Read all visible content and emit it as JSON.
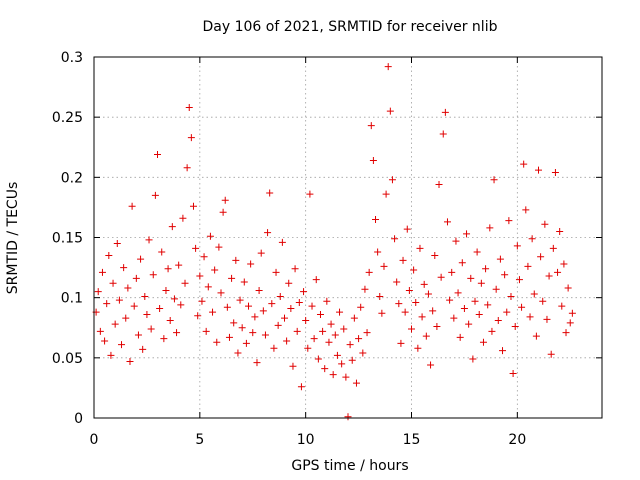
{
  "chart_data": {
    "type": "scatter",
    "title": "Day 106 of 2021, SRMTID for receiver nlib",
    "xlabel": "GPS time / hours",
    "ylabel": "SRMTID / TECUs",
    "xlim": [
      0,
      24
    ],
    "ylim": [
      0,
      0.3
    ],
    "x_ticks": [
      0,
      5,
      10,
      15,
      20
    ],
    "x_tick_labels": [
      "0",
      "5",
      "10",
      "15",
      "20"
    ],
    "y_ticks": [
      0,
      0.05,
      0.1,
      0.15,
      0.2,
      0.25,
      0.3
    ],
    "y_tick_labels": [
      "0",
      "0.05",
      "0.1",
      "0.15",
      "0.2",
      "0.25",
      "0.3"
    ],
    "grid": true,
    "marker": "plus",
    "color": "#e00000",
    "series": [
      {
        "name": "SRMTID",
        "points": [
          [
            0.1,
            0.088
          ],
          [
            0.2,
            0.105
          ],
          [
            0.3,
            0.072
          ],
          [
            0.4,
            0.121
          ],
          [
            0.5,
            0.064
          ],
          [
            0.6,
            0.095
          ],
          [
            0.7,
            0.135
          ],
          [
            0.8,
            0.052
          ],
          [
            0.9,
            0.112
          ],
          [
            1.0,
            0.078
          ],
          [
            1.1,
            0.145
          ],
          [
            1.2,
            0.098
          ],
          [
            1.3,
            0.061
          ],
          [
            1.4,
            0.125
          ],
          [
            1.5,
            0.083
          ],
          [
            1.6,
            0.108
          ],
          [
            1.7,
            0.047
          ],
          [
            1.8,
            0.176
          ],
          [
            1.9,
            0.093
          ],
          [
            2.0,
            0.116
          ],
          [
            2.1,
            0.069
          ],
          [
            2.2,
            0.132
          ],
          [
            2.3,
            0.057
          ],
          [
            2.4,
            0.101
          ],
          [
            2.5,
            0.086
          ],
          [
            2.6,
            0.148
          ],
          [
            2.7,
            0.074
          ],
          [
            2.8,
            0.119
          ],
          [
            2.9,
            0.185
          ],
          [
            3.0,
            0.219
          ],
          [
            3.1,
            0.091
          ],
          [
            3.2,
            0.138
          ],
          [
            3.3,
            0.066
          ],
          [
            3.4,
            0.106
          ],
          [
            3.5,
            0.124
          ],
          [
            3.6,
            0.081
          ],
          [
            3.7,
            0.159
          ],
          [
            3.8,
            0.099
          ],
          [
            3.9,
            0.071
          ],
          [
            4.0,
            0.127
          ],
          [
            4.1,
            0.094
          ],
          [
            4.2,
            0.166
          ],
          [
            4.3,
            0.112
          ],
          [
            4.4,
            0.208
          ],
          [
            4.5,
            0.258
          ],
          [
            4.6,
            0.233
          ],
          [
            4.7,
            0.176
          ],
          [
            4.8,
            0.141
          ],
          [
            4.9,
            0.085
          ],
          [
            5.0,
            0.118
          ],
          [
            5.1,
            0.097
          ],
          [
            5.2,
            0.134
          ],
          [
            5.3,
            0.072
          ],
          [
            5.4,
            0.109
          ],
          [
            5.5,
            0.151
          ],
          [
            5.6,
            0.088
          ],
          [
            5.7,
            0.123
          ],
          [
            5.8,
            0.063
          ],
          [
            5.9,
            0.142
          ],
          [
            6.0,
            0.104
          ],
          [
            6.1,
            0.171
          ],
          [
            6.2,
            0.181
          ],
          [
            6.3,
            0.092
          ],
          [
            6.4,
            0.067
          ],
          [
            6.5,
            0.116
          ],
          [
            6.6,
            0.079
          ],
          [
            6.7,
            0.131
          ],
          [
            6.8,
            0.054
          ],
          [
            6.9,
            0.098
          ],
          [
            7.0,
            0.075
          ],
          [
            7.1,
            0.113
          ],
          [
            7.2,
            0.062
          ],
          [
            7.3,
            0.093
          ],
          [
            7.4,
            0.128
          ],
          [
            7.5,
            0.071
          ],
          [
            7.6,
            0.084
          ],
          [
            7.7,
            0.046
          ],
          [
            7.8,
            0.106
          ],
          [
            7.9,
            0.137
          ],
          [
            8.0,
            0.089
          ],
          [
            8.1,
            0.069
          ],
          [
            8.2,
            0.154
          ],
          [
            8.3,
            0.187
          ],
          [
            8.4,
            0.095
          ],
          [
            8.5,
            0.058
          ],
          [
            8.6,
            0.121
          ],
          [
            8.7,
            0.077
          ],
          [
            8.8,
            0.101
          ],
          [
            8.9,
            0.146
          ],
          [
            9.0,
            0.083
          ],
          [
            9.1,
            0.064
          ],
          [
            9.2,
            0.112
          ],
          [
            9.3,
            0.091
          ],
          [
            9.4,
            0.043
          ],
          [
            9.5,
            0.124
          ],
          [
            9.6,
            0.072
          ],
          [
            9.7,
            0.096
          ],
          [
            9.8,
            0.026
          ],
          [
            9.9,
            0.105
          ],
          [
            10.0,
            0.081
          ],
          [
            10.1,
            0.058
          ],
          [
            10.2,
            0.186
          ],
          [
            10.3,
            0.093
          ],
          [
            10.4,
            0.066
          ],
          [
            10.5,
            0.115
          ],
          [
            10.6,
            0.049
          ],
          [
            10.7,
            0.086
          ],
          [
            10.8,
            0.072
          ],
          [
            10.9,
            0.041
          ],
          [
            11.0,
            0.097
          ],
          [
            11.1,
            0.063
          ],
          [
            11.2,
            0.078
          ],
          [
            11.3,
            0.036
          ],
          [
            11.4,
            0.069
          ],
          [
            11.5,
            0.052
          ],
          [
            11.6,
            0.088
          ],
          [
            11.7,
            0.045
          ],
          [
            11.8,
            0.074
          ],
          [
            11.9,
            0.034
          ],
          [
            12.0,
            0.001
          ],
          [
            12.1,
            0.061
          ],
          [
            12.2,
            0.048
          ],
          [
            12.3,
            0.083
          ],
          [
            12.4,
            0.029
          ],
          [
            12.5,
            0.066
          ],
          [
            12.6,
            0.092
          ],
          [
            12.7,
            0.054
          ],
          [
            12.8,
            0.107
          ],
          [
            12.9,
            0.071
          ],
          [
            13.0,
            0.121
          ],
          [
            13.1,
            0.243
          ],
          [
            13.2,
            0.214
          ],
          [
            13.3,
            0.165
          ],
          [
            13.4,
            0.138
          ],
          [
            13.5,
            0.101
          ],
          [
            13.6,
            0.087
          ],
          [
            13.7,
            0.126
          ],
          [
            13.8,
            0.186
          ],
          [
            13.9,
            0.292
          ],
          [
            14.0,
            0.255
          ],
          [
            14.1,
            0.198
          ],
          [
            14.2,
            0.149
          ],
          [
            14.3,
            0.113
          ],
          [
            14.4,
            0.095
          ],
          [
            14.5,
            0.062
          ],
          [
            14.6,
            0.131
          ],
          [
            14.7,
            0.088
          ],
          [
            14.8,
            0.157
          ],
          [
            14.9,
            0.106
          ],
          [
            15.0,
            0.074
          ],
          [
            15.1,
            0.123
          ],
          [
            15.2,
            0.096
          ],
          [
            15.3,
            0.058
          ],
          [
            15.4,
            0.141
          ],
          [
            15.5,
            0.084
          ],
          [
            15.6,
            0.111
          ],
          [
            15.7,
            0.068
          ],
          [
            15.8,
            0.103
          ],
          [
            15.9,
            0.044
          ],
          [
            16.0,
            0.089
          ],
          [
            16.1,
            0.135
          ],
          [
            16.2,
            0.076
          ],
          [
            16.3,
            0.194
          ],
          [
            16.4,
            0.117
          ],
          [
            16.5,
            0.236
          ],
          [
            16.6,
            0.254
          ],
          [
            16.7,
            0.163
          ],
          [
            16.8,
            0.098
          ],
          [
            16.9,
            0.121
          ],
          [
            17.0,
            0.083
          ],
          [
            17.1,
            0.147
          ],
          [
            17.2,
            0.104
          ],
          [
            17.3,
            0.067
          ],
          [
            17.4,
            0.129
          ],
          [
            17.5,
            0.091
          ],
          [
            17.6,
            0.153
          ],
          [
            17.7,
            0.078
          ],
          [
            17.8,
            0.116
          ],
          [
            17.9,
            0.049
          ],
          [
            18.0,
            0.097
          ],
          [
            18.1,
            0.138
          ],
          [
            18.2,
            0.086
          ],
          [
            18.3,
            0.112
          ],
          [
            18.4,
            0.063
          ],
          [
            18.5,
            0.124
          ],
          [
            18.6,
            0.094
          ],
          [
            18.7,
            0.158
          ],
          [
            18.8,
            0.072
          ],
          [
            18.9,
            0.198
          ],
          [
            19.0,
            0.107
          ],
          [
            19.1,
            0.081
          ],
          [
            19.2,
            0.132
          ],
          [
            19.3,
            0.056
          ],
          [
            19.4,
            0.119
          ],
          [
            19.5,
            0.088
          ],
          [
            19.6,
            0.164
          ],
          [
            19.7,
            0.101
          ],
          [
            19.8,
            0.037
          ],
          [
            19.9,
            0.076
          ],
          [
            20.0,
            0.143
          ],
          [
            20.1,
            0.115
          ],
          [
            20.2,
            0.092
          ],
          [
            20.3,
            0.211
          ],
          [
            20.4,
            0.173
          ],
          [
            20.5,
            0.126
          ],
          [
            20.6,
            0.084
          ],
          [
            20.7,
            0.149
          ],
          [
            20.8,
            0.103
          ],
          [
            20.9,
            0.068
          ],
          [
            21.0,
            0.206
          ],
          [
            21.1,
            0.134
          ],
          [
            21.2,
            0.097
          ],
          [
            21.3,
            0.161
          ],
          [
            21.4,
            0.082
          ],
          [
            21.5,
            0.118
          ],
          [
            21.6,
            0.053
          ],
          [
            21.7,
            0.141
          ],
          [
            21.8,
            0.204
          ],
          [
            21.9,
            0.121
          ],
          [
            22.0,
            0.155
          ],
          [
            22.1,
            0.093
          ],
          [
            22.2,
            0.128
          ],
          [
            22.3,
            0.071
          ],
          [
            22.4,
            0.108
          ],
          [
            22.5,
            0.079
          ],
          [
            22.6,
            0.087
          ]
        ]
      }
    ]
  }
}
